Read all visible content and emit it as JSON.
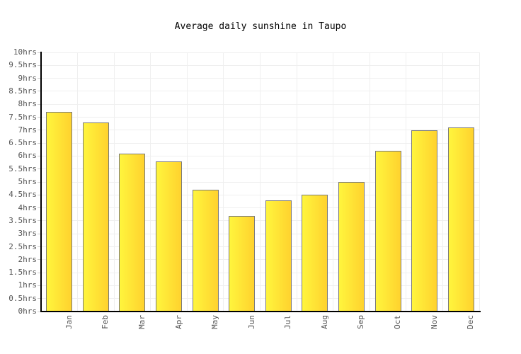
{
  "chart_data": {
    "type": "bar",
    "title": "Average daily sunshine in Taupo",
    "categories": [
      "Jan",
      "Feb",
      "Mar",
      "Apr",
      "May",
      "Jun",
      "Jul",
      "Aug",
      "Sep",
      "Oct",
      "Nov",
      "Dec"
    ],
    "values": [
      7.7,
      7.3,
      6.1,
      5.8,
      4.7,
      3.7,
      4.3,
      4.5,
      5.0,
      6.2,
      7.0,
      7.1
    ],
    "unit": "hrs",
    "xlabel": "",
    "ylabel": "",
    "ylim": [
      0,
      10
    ],
    "tick_step": 0.5,
    "y_tick_labels": [
      "10hrs",
      "9.5hrs",
      "9hrs",
      "8.5hrs",
      "8hrs",
      "7.5hrs",
      "7hrs",
      "6.5hrs",
      "6hrs",
      "5.5hrs",
      "5hrs",
      "4.5hrs",
      "4hrs",
      "3.5hrs",
      "3hrs",
      "2.5hrs",
      "2hrs",
      "1.5hrs",
      "1hrs",
      "0.5hrs",
      "0hrs"
    ],
    "grid": true,
    "legend": "none",
    "colors": {
      "bar_gradient_left": "#fff53d",
      "bar_gradient_right": "#ffd22e",
      "bar_border": "#7a7a7a",
      "gridline": "#efefef",
      "tick_mark": "#cccccc",
      "axis": "#000000",
      "label_text": "#555555",
      "title_text": "#000000",
      "background": "#ffffff"
    }
  }
}
